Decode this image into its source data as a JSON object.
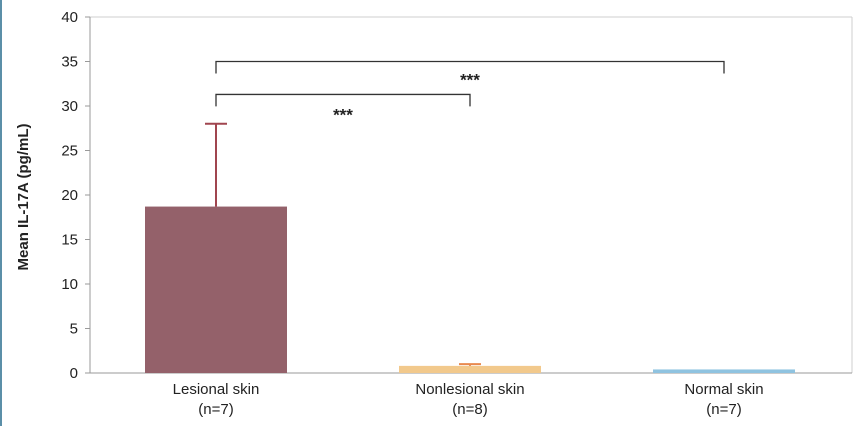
{
  "chart_data": {
    "type": "bar",
    "title": "",
    "xlabel": "",
    "ylabel": "Mean IL-17A (pg/mL)",
    "ylim": [
      0,
      40
    ],
    "yticks": [
      0,
      5,
      10,
      15,
      20,
      25,
      30,
      35,
      40
    ],
    "grid": false,
    "categories": [
      [
        "Lesional skin",
        "(n=7)"
      ],
      [
        "Nonlesional skin",
        "(n=8)"
      ],
      [
        "Normal skin",
        "(n=7)"
      ]
    ],
    "values": [
      18.7,
      0.8,
      0.4
    ],
    "error_upper": [
      28.0,
      1.0,
      null
    ],
    "colors": [
      "#94616a",
      "#f2c98c",
      "#8fc3e0"
    ],
    "error_colors": [
      "#a0454f",
      "#e8894f",
      "#8fc3e0"
    ],
    "significance": [
      {
        "from": 0,
        "to": 2,
        "label": "***",
        "y": 35
      },
      {
        "from": 0,
        "to": 1,
        "label": "***",
        "y": 31.3
      }
    ]
  }
}
